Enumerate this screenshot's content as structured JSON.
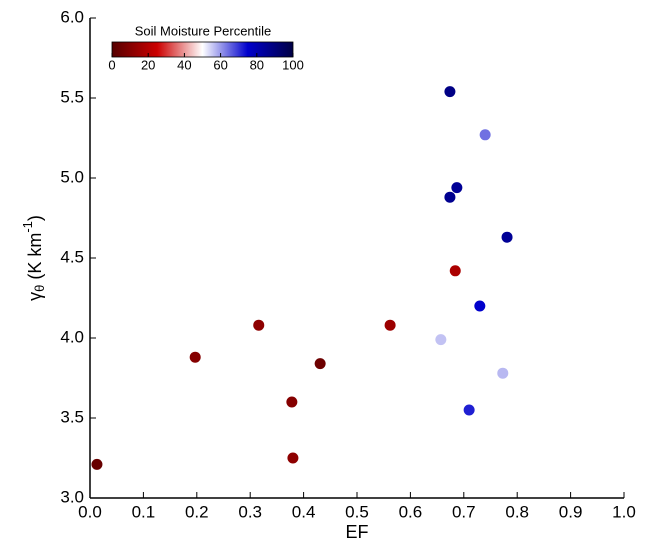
{
  "chart_data": {
    "type": "scatter",
    "xlabel": "EF",
    "ylabel": {
      "symbol": "γ",
      "subscript": "θ",
      "text": " (K km",
      "superscript": "-1",
      "close": ")"
    },
    "x": [
      0.013,
      0.197,
      0.316,
      0.378,
      0.38,
      0.431,
      0.562,
      0.657,
      0.684,
      0.674,
      0.74,
      0.687,
      0.674,
      0.781,
      0.73,
      0.773,
      0.71
    ],
    "y": [
      3.21,
      3.88,
      4.08,
      3.6,
      3.25,
      3.84,
      4.08,
      3.99,
      4.42,
      5.54,
      5.27,
      4.94,
      4.88,
      4.63,
      4.2,
      3.78,
      3.55
    ],
    "color_values": [
      4,
      10,
      12,
      10,
      12,
      5,
      15,
      56,
      18,
      88,
      64,
      85,
      86,
      85,
      75,
      57,
      72
    ],
    "xlim": [
      0,
      1
    ],
    "xticks": [
      {
        "value": 0,
        "label": "0.0"
      },
      0.1,
      0.2,
      0.3,
      0.4,
      0.5,
      0.6,
      0.7,
      0.8,
      0.9,
      {
        "value": 1,
        "label": "1.0"
      }
    ],
    "ylim": [
      3,
      6
    ],
    "yticks": [
      {
        "value": 3,
        "label": "3.0"
      },
      3.5,
      {
        "value": 4,
        "label": "4.0"
      },
      4.5,
      {
        "value": 5,
        "label": "5.0"
      },
      5.5,
      {
        "value": 6,
        "label": "6.0"
      }
    ],
    "colorbar": {
      "title": "Soil Moisture Percentile",
      "lim": [
        0,
        100
      ],
      "ticks": [
        0,
        20,
        40,
        60,
        80,
        100
      ],
      "colormap": [
        "#550000",
        "#cc0000",
        "#ffffff",
        "#0000cc",
        "#000044"
      ]
    }
  }
}
